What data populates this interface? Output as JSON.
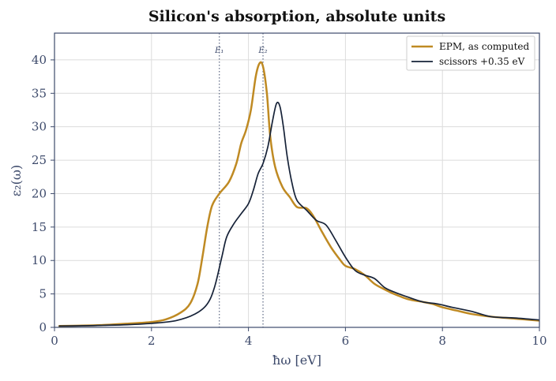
{
  "chart_data": {
    "type": "line",
    "title": "Silicon's absorption, absolute units",
    "xlabel": "ħω  [eV]",
    "ylabel": "ε₂(ω)",
    "xlim": [
      0,
      10
    ],
    "ylim": [
      0,
      44
    ],
    "xticks": [
      0,
      2,
      4,
      6,
      8,
      10
    ],
    "yticks": [
      0,
      5,
      10,
      15,
      20,
      25,
      30,
      35,
      40
    ],
    "grid": true,
    "legend_position": "top-right",
    "vlines": [
      {
        "x": 3.4,
        "label": "E₁"
      },
      {
        "x": 4.3,
        "label": "E₂"
      }
    ],
    "series": [
      {
        "name": "EPM, as computed",
        "color": "#bf8a23",
        "points": [
          [
            0.1,
            0.2
          ],
          [
            0.5,
            0.25
          ],
          [
            1.0,
            0.35
          ],
          [
            1.5,
            0.55
          ],
          [
            2.0,
            0.8
          ],
          [
            2.3,
            1.2
          ],
          [
            2.6,
            2.2
          ],
          [
            2.8,
            3.6
          ],
          [
            2.95,
            6.5
          ],
          [
            3.05,
            10.5
          ],
          [
            3.15,
            15.0
          ],
          [
            3.25,
            18.2
          ],
          [
            3.4,
            20.0
          ],
          [
            3.6,
            21.8
          ],
          [
            3.75,
            24.5
          ],
          [
            3.85,
            27.5
          ],
          [
            3.95,
            29.5
          ],
          [
            4.05,
            32.5
          ],
          [
            4.15,
            37.5
          ],
          [
            4.23,
            39.5
          ],
          [
            4.3,
            39.0
          ],
          [
            4.38,
            35.0
          ],
          [
            4.45,
            28.5
          ],
          [
            4.55,
            24.0
          ],
          [
            4.7,
            21.0
          ],
          [
            4.85,
            19.5
          ],
          [
            5.0,
            18.0
          ],
          [
            5.2,
            17.8
          ],
          [
            5.35,
            16.5
          ],
          [
            5.5,
            14.5
          ],
          [
            5.7,
            12.0
          ],
          [
            5.9,
            10.0
          ],
          [
            6.0,
            9.2
          ],
          [
            6.2,
            8.7
          ],
          [
            6.4,
            7.8
          ],
          [
            6.6,
            6.5
          ],
          [
            6.8,
            5.7
          ],
          [
            7.0,
            5.0
          ],
          [
            7.3,
            4.2
          ],
          [
            7.6,
            3.8
          ],
          [
            7.8,
            3.5
          ],
          [
            8.0,
            3.0
          ],
          [
            8.3,
            2.5
          ],
          [
            8.6,
            2.0
          ],
          [
            9.0,
            1.6
          ],
          [
            9.5,
            1.3
          ],
          [
            10.0,
            1.0
          ]
        ]
      },
      {
        "name": "scissors +0.35 eV",
        "color": "#162238",
        "points": [
          [
            0.1,
            0.2
          ],
          [
            0.5,
            0.22
          ],
          [
            1.0,
            0.3
          ],
          [
            1.5,
            0.4
          ],
          [
            2.0,
            0.6
          ],
          [
            2.5,
            1.0
          ],
          [
            2.9,
            2.0
          ],
          [
            3.15,
            3.5
          ],
          [
            3.3,
            6.0
          ],
          [
            3.45,
            10.5
          ],
          [
            3.55,
            13.5
          ],
          [
            3.7,
            15.5
          ],
          [
            3.85,
            17.0
          ],
          [
            4.0,
            18.5
          ],
          [
            4.1,
            20.5
          ],
          [
            4.2,
            23.0
          ],
          [
            4.3,
            24.5
          ],
          [
            4.4,
            27.0
          ],
          [
            4.5,
            31.0
          ],
          [
            4.58,
            33.5
          ],
          [
            4.65,
            33.0
          ],
          [
            4.72,
            30.0
          ],
          [
            4.8,
            25.5
          ],
          [
            4.9,
            21.5
          ],
          [
            5.0,
            19.0
          ],
          [
            5.2,
            17.5
          ],
          [
            5.4,
            16.0
          ],
          [
            5.6,
            15.3
          ],
          [
            5.8,
            13.0
          ],
          [
            6.0,
            10.5
          ],
          [
            6.2,
            8.5
          ],
          [
            6.4,
            7.8
          ],
          [
            6.6,
            7.3
          ],
          [
            6.8,
            6.0
          ],
          [
            7.0,
            5.3
          ],
          [
            7.3,
            4.5
          ],
          [
            7.6,
            3.8
          ],
          [
            7.9,
            3.5
          ],
          [
            8.2,
            3.0
          ],
          [
            8.6,
            2.4
          ],
          [
            9.0,
            1.6
          ],
          [
            9.5,
            1.4
          ],
          [
            10.0,
            1.1
          ]
        ]
      }
    ]
  }
}
